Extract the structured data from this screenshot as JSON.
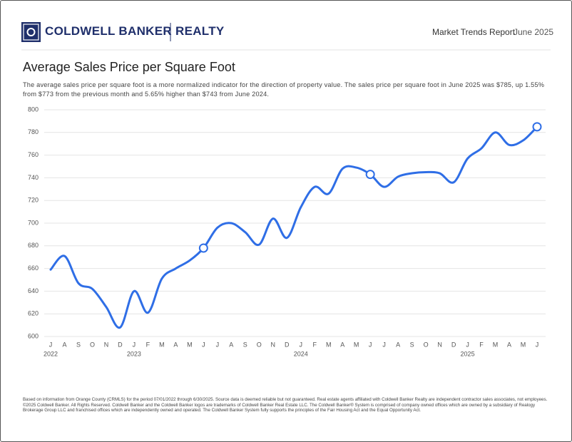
{
  "header": {
    "brand": "COLDWELL BANKER",
    "brand_suffix": "REALTY",
    "report": "Market Trends Report",
    "period": "June 2025"
  },
  "chart_data": {
    "type": "line",
    "title": "Average Sales Price per Square Foot",
    "subtitle": "The average sales price per square foot is a more normalized indicator for the direction of property value. The sales price per square foot in June 2025 was $785, up 1.55% from $773 from the previous month and 5.65% higher than $743 from June 2024.",
    "categories": [
      "J",
      "A",
      "S",
      "O",
      "N",
      "D",
      "J",
      "F",
      "M",
      "A",
      "M",
      "J",
      "J",
      "A",
      "S",
      "O",
      "N",
      "D",
      "J",
      "F",
      "M",
      "A",
      "M",
      "J",
      "J",
      "A",
      "S",
      "O",
      "N",
      "D",
      "J",
      "F",
      "M",
      "A",
      "M",
      "J"
    ],
    "year_labels": [
      {
        "index": 0,
        "label": "2022"
      },
      {
        "index": 6,
        "label": "2023"
      },
      {
        "index": 18,
        "label": "2024"
      },
      {
        "index": 30,
        "label": "2025"
      }
    ],
    "series": [
      {
        "name": "Average Sales Price per Square Foot",
        "color": "#2f6ee6",
        "values": [
          659,
          671,
          647,
          642,
          626,
          608,
          640,
          621,
          651,
          660,
          667,
          678,
          696,
          700,
          692,
          681,
          704,
          687,
          714,
          732,
          726,
          748,
          749,
          743,
          732,
          741,
          744,
          745,
          744,
          736,
          757,
          766,
          780,
          769,
          773,
          785
        ]
      }
    ],
    "highlight_indices": [
      11,
      23,
      35
    ],
    "ylim": [
      600,
      800
    ],
    "yticks": [
      600,
      620,
      640,
      660,
      680,
      700,
      720,
      740,
      760,
      780,
      800
    ],
    "grid": true
  },
  "footer": {
    "disclaimer": "Based on information from Orange County (CRMLS) for the period 07/01/2022 through 6/30/2025. Source data is deemed reliable but not guaranteed. Real estate agents affiliated with Coldwell Banker Realty are independent contractor sales associates, not employees. ©2025 Coldwell Banker. All Rights Reserved. Coldwell Banker and the Coldwell Banker logos are trademarks of Coldwell Banker Real Estate LLC. The Coldwell Banker® System is comprised of company owned offices which are owned by a subsidiary of Realogy Brokerage Group LLC and franchised offices which are independently owned and operated. The Coldwell Banker System fully supports the principles of the Fair Housing Act and the Equal Opportunity Act."
  }
}
